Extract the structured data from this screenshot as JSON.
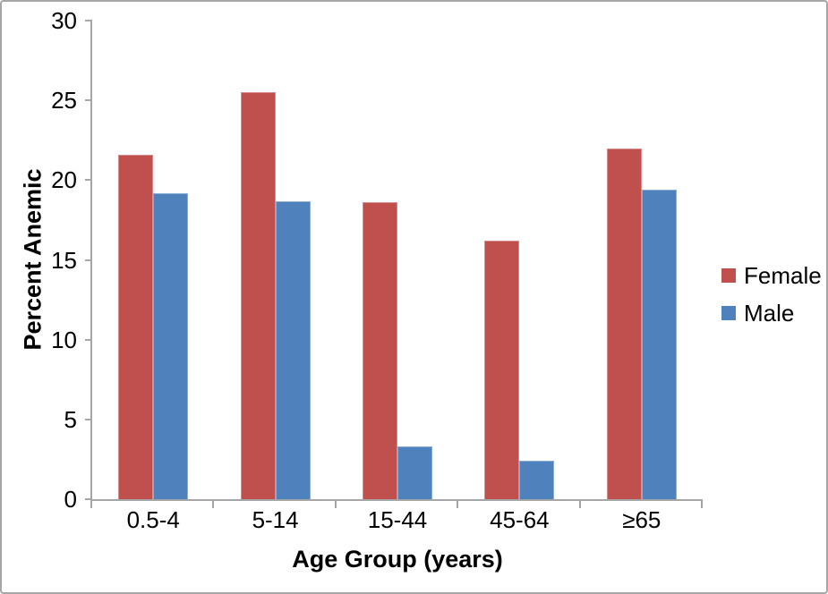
{
  "chart_data": {
    "type": "bar",
    "title": "",
    "categories": [
      "0.5-4",
      "5-14",
      "15-44",
      "45-64",
      "≥65"
    ],
    "series": [
      {
        "name": "Female",
        "color": "#C0504D",
        "values": [
          21.6,
          25.5,
          18.6,
          16.2,
          22.0
        ]
      },
      {
        "name": "Male",
        "color": "#4F81BD",
        "values": [
          19.2,
          18.7,
          3.3,
          2.4,
          19.4
        ]
      }
    ],
    "xlabel": "Age Group (years)",
    "ylabel": "Percent Anemic",
    "ylim": [
      0,
      30
    ],
    "yticks": [
      0,
      5,
      10,
      15,
      20,
      25,
      30
    ],
    "grid": false,
    "legend_position": "right",
    "axis_color": "#A6A6A6",
    "frame_color": "#A6A6A6"
  }
}
